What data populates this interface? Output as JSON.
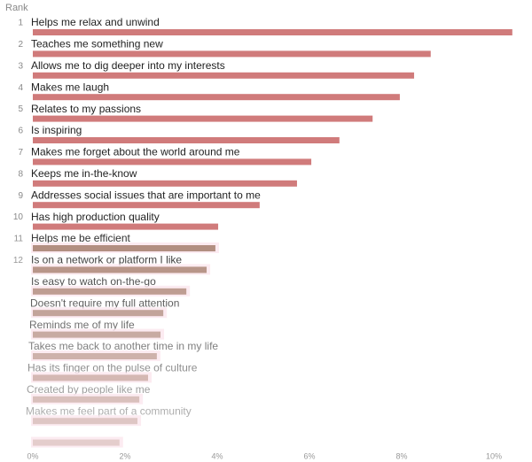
{
  "chart_data": {
    "type": "hbar",
    "axis_title": "Rank",
    "ranks": [
      "1",
      "2",
      "3",
      "4",
      "5",
      "6",
      "7",
      "8",
      "9",
      "10",
      "11",
      "12"
    ],
    "categories": [
      "Helps me relax and unwind",
      "Teaches me something new",
      "Allows me to dig deeper into my interests",
      "Makes me laugh",
      "Relates to my passions",
      "Is inspiring",
      "Makes me forget about the world around me",
      "Keeps me in-the-know",
      "Addresses social issues that are important to me",
      "Has high production quality",
      "Helps me be efficient",
      "Is on a network or platform I like",
      "Is easy to watch on-the-go",
      "Doesn't require my full attention",
      "Reminds me of my life",
      "Takes me back to another time in my life",
      "Has its finger on the pulse of culture",
      "Created by people like me",
      "Makes me feel part of a community",
      null
    ],
    "values": [
      10.4,
      8.63,
      8.27,
      7.96,
      7.37,
      6.65,
      6.04,
      5.73,
      4.92,
      4.02,
      3.96,
      3.77,
      3.33,
      2.83,
      2.77,
      2.69,
      2.5,
      2.31,
      2.27,
      1.88
    ],
    "color": "#d07b7b",
    "xlim": [
      0,
      10.5
    ],
    "xticks": [
      {
        "value": 0,
        "label": "0%"
      },
      {
        "value": 2,
        "label": "2%"
      },
      {
        "value": 4,
        "label": "4%"
      },
      {
        "value": 6,
        "label": "6%"
      },
      {
        "value": 8,
        "label": "8%"
      },
      {
        "value": 10,
        "label": "10%"
      }
    ]
  }
}
